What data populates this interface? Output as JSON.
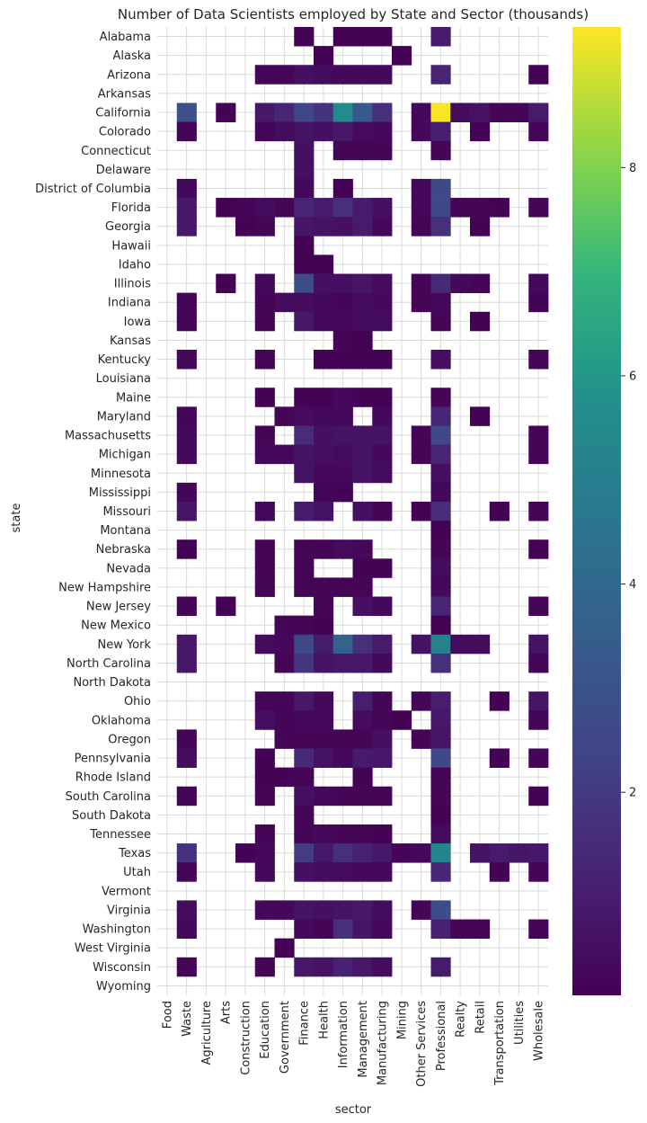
{
  "chart_data": {
    "type": "heatmap",
    "title": "Number of Data Scientists employed by State and Sector (thousands)",
    "xlabel": "sector",
    "ylabel": "state",
    "x_categories": [
      "Food",
      "Waste",
      "Agriculture",
      "Arts",
      "Construction",
      "Education",
      "Government",
      "Finance",
      "Health",
      "Information",
      "Management",
      "Manufacturing",
      "Mining",
      "Other Services",
      "Professional",
      "Realty",
      "Retail",
      "Transportation",
      "Utilities",
      "Wholesale"
    ],
    "y_categories": [
      "Alabama",
      "Alaska",
      "Arizona",
      "Arkansas",
      "California",
      "Colorado",
      "Connecticut",
      "Delaware",
      "District of Columbia",
      "Florida",
      "Georgia",
      "Hawaii",
      "Idaho",
      "Illinois",
      "Indiana",
      "Iowa",
      "Kansas",
      "Kentucky",
      "Louisiana",
      "Maine",
      "Maryland",
      "Massachusetts",
      "Michigan",
      "Minnesota",
      "Mississippi",
      "Missouri",
      "Montana",
      "Nebraska",
      "Nevada",
      "New Hampshire",
      "New Jersey",
      "New Mexico",
      "New York",
      "North Carolina",
      "North Dakota",
      "Ohio",
      "Oklahoma",
      "Oregon",
      "Pennsylvania",
      "Rhode Island",
      "South Carolina",
      "South Dakota",
      "Tennessee",
      "Texas",
      "Utah",
      "Vermont",
      "Virginia",
      "Washington",
      "West Virginia",
      "Wisconsin",
      "Wyoming"
    ],
    "values": [
      [
        null,
        null,
        null,
        null,
        null,
        null,
        null,
        0.1,
        null,
        0.1,
        0.1,
        0.1,
        null,
        null,
        0.9,
        null,
        null,
        null,
        null,
        null
      ],
      [
        null,
        null,
        null,
        null,
        null,
        null,
        null,
        null,
        0.1,
        null,
        null,
        null,
        0.1,
        null,
        null,
        null,
        null,
        null,
        null,
        null
      ],
      [
        null,
        null,
        null,
        null,
        null,
        0.2,
        0.2,
        0.5,
        0.4,
        0.3,
        0.3,
        0.3,
        null,
        null,
        1.2,
        null,
        null,
        null,
        null,
        0.1
      ],
      [
        null,
        null,
        null,
        null,
        null,
        null,
        null,
        null,
        null,
        null,
        null,
        null,
        null,
        null,
        null,
        null,
        null,
        null,
        null,
        null
      ],
      [
        null,
        2.9,
        null,
        0.1,
        null,
        0.8,
        1.3,
        2.5,
        1.8,
        5.6,
        3.3,
        1.6,
        null,
        0.3,
        9.3,
        0.4,
        0.6,
        0.2,
        0.2,
        0.9
      ],
      [
        null,
        0.2,
        null,
        null,
        null,
        0.2,
        0.4,
        0.6,
        0.5,
        0.8,
        0.4,
        0.3,
        null,
        0.3,
        1.0,
        null,
        0.1,
        null,
        null,
        0.2
      ],
      [
        null,
        null,
        null,
        null,
        null,
        null,
        null,
        0.5,
        null,
        0.2,
        0.2,
        0.2,
        null,
        null,
        0.2,
        null,
        null,
        null,
        null,
        null
      ],
      [
        null,
        null,
        null,
        null,
        null,
        null,
        null,
        0.5,
        null,
        null,
        null,
        null,
        null,
        null,
        null,
        null,
        null,
        null,
        null,
        null
      ],
      [
        null,
        0.3,
        null,
        null,
        null,
        null,
        null,
        0.3,
        null,
        0.1,
        null,
        null,
        null,
        0.3,
        2.6,
        null,
        null,
        null,
        null,
        null
      ],
      [
        null,
        0.8,
        null,
        0.1,
        0.2,
        0.4,
        0.2,
        1.2,
        0.9,
        1.6,
        0.9,
        0.5,
        null,
        0.3,
        2.6,
        0.2,
        0.2,
        0.1,
        null,
        0.2
      ],
      [
        null,
        0.8,
        null,
        null,
        0.1,
        0.2,
        null,
        0.7,
        0.6,
        0.5,
        0.9,
        0.3,
        null,
        0.2,
        1.6,
        null,
        0.1,
        null,
        null,
        null
      ],
      [
        null,
        null,
        null,
        null,
        null,
        null,
        null,
        0.1,
        null,
        null,
        null,
        null,
        null,
        null,
        null,
        null,
        null,
        null,
        null,
        null
      ],
      [
        null,
        null,
        null,
        null,
        null,
        null,
        null,
        0.1,
        0.1,
        null,
        null,
        null,
        null,
        null,
        null,
        null,
        null,
        null,
        null,
        null
      ],
      [
        null,
        null,
        null,
        0.1,
        null,
        0.3,
        null,
        2.7,
        0.5,
        0.5,
        0.7,
        0.4,
        null,
        0.2,
        1.4,
        0.3,
        0.2,
        null,
        null,
        0.3
      ],
      [
        null,
        0.2,
        null,
        null,
        null,
        0.2,
        0.4,
        0.4,
        0.3,
        0.2,
        0.4,
        0.3,
        null,
        0.2,
        0.3,
        null,
        null,
        null,
        null,
        0.1
      ],
      [
        null,
        0.2,
        null,
        null,
        null,
        0.2,
        null,
        0.8,
        0.3,
        0.3,
        0.4,
        0.4,
        null,
        null,
        0.2,
        null,
        0.1,
        null,
        null,
        null
      ],
      [
        null,
        null,
        null,
        null,
        null,
        null,
        null,
        null,
        null,
        0.2,
        0.1,
        null,
        null,
        null,
        null,
        null,
        null,
        null,
        null,
        null
      ],
      [
        null,
        0.3,
        null,
        null,
        null,
        0.2,
        null,
        null,
        0.1,
        0.1,
        0.1,
        0.1,
        null,
        null,
        0.5,
        null,
        null,
        null,
        null,
        0.2
      ],
      [
        null,
        null,
        null,
        null,
        null,
        null,
        null,
        null,
        null,
        null,
        null,
        null,
        null,
        null,
        null,
        null,
        null,
        null,
        null,
        null
      ],
      [
        null,
        null,
        null,
        null,
        null,
        0.1,
        null,
        0.1,
        0.1,
        0.3,
        0.1,
        0.1,
        null,
        null,
        0.2,
        null,
        null,
        null,
        null,
        null
      ],
      [
        null,
        0.2,
        null,
        null,
        null,
        null,
        0.2,
        0.4,
        0.3,
        0.3,
        null,
        0.3,
        null,
        null,
        1.2,
        null,
        0.1,
        null,
        null,
        null
      ],
      [
        null,
        0.3,
        null,
        null,
        null,
        0.2,
        null,
        1.5,
        0.5,
        0.6,
        0.6,
        0.6,
        null,
        0.2,
        2.6,
        null,
        null,
        null,
        null,
        0.2
      ],
      [
        null,
        0.3,
        null,
        null,
        null,
        0.3,
        0.3,
        0.6,
        0.5,
        0.4,
        0.6,
        0.3,
        null,
        0.2,
        1.2,
        null,
        null,
        null,
        null,
        0.2
      ],
      [
        null,
        null,
        null,
        null,
        null,
        null,
        null,
        0.6,
        0.3,
        0.3,
        0.6,
        0.4,
        null,
        null,
        0.5,
        null,
        null,
        null,
        null,
        null
      ],
      [
        null,
        0.2,
        null,
        null,
        null,
        null,
        null,
        null,
        0.2,
        0.1,
        null,
        null,
        null,
        null,
        0.3,
        null,
        null,
        null,
        null,
        null
      ],
      [
        null,
        0.7,
        null,
        null,
        null,
        0.3,
        null,
        0.9,
        0.6,
        null,
        0.5,
        0.2,
        null,
        0.1,
        1.5,
        null,
        null,
        0.1,
        null,
        0.2
      ],
      [
        null,
        null,
        null,
        null,
        null,
        null,
        null,
        null,
        null,
        null,
        null,
        null,
        null,
        null,
        0.1,
        null,
        null,
        null,
        null,
        null
      ],
      [
        null,
        0.1,
        null,
        null,
        null,
        0.2,
        null,
        0.2,
        0.2,
        0.4,
        0.3,
        null,
        null,
        null,
        0.2,
        null,
        null,
        null,
        null,
        0.1
      ],
      [
        null,
        null,
        null,
        null,
        null,
        0.2,
        null,
        0.2,
        null,
        null,
        0.1,
        0.1,
        null,
        null,
        0.4,
        null,
        null,
        null,
        null,
        null
      ],
      [
        null,
        null,
        null,
        null,
        null,
        0.2,
        null,
        0.2,
        0.2,
        0.2,
        0.2,
        null,
        null,
        null,
        0.3,
        null,
        null,
        null,
        null,
        null
      ],
      [
        null,
        0.2,
        null,
        0.1,
        null,
        null,
        null,
        null,
        0.2,
        null,
        0.5,
        0.3,
        null,
        null,
        1.2,
        null,
        null,
        null,
        null,
        0.2
      ],
      [
        null,
        null,
        null,
        null,
        null,
        null,
        0.2,
        0.2,
        0.1,
        null,
        null,
        null,
        null,
        null,
        0.1,
        null,
        null,
        null,
        null,
        null
      ],
      [
        null,
        0.8,
        null,
        null,
        null,
        0.4,
        0.3,
        2.6,
        0.9,
        3.7,
        1.6,
        0.9,
        null,
        0.6,
        5.2,
        0.4,
        0.4,
        null,
        null,
        0.6
      ],
      [
        null,
        0.8,
        null,
        null,
        null,
        null,
        0.2,
        1.9,
        0.6,
        0.8,
        0.8,
        0.3,
        null,
        null,
        1.6,
        null,
        null,
        null,
        null,
        0.2
      ],
      [
        null,
        null,
        null,
        null,
        null,
        null,
        null,
        null,
        null,
        null,
        null,
        null,
        null,
        null,
        null,
        null,
        null,
        null,
        null,
        null
      ],
      [
        null,
        null,
        null,
        null,
        null,
        0.2,
        0.2,
        0.8,
        0.3,
        null,
        1.0,
        0.2,
        null,
        0.2,
        1.0,
        null,
        null,
        0.1,
        null,
        0.7
      ],
      [
        null,
        null,
        null,
        null,
        null,
        0.5,
        0.2,
        0.3,
        0.3,
        null,
        0.4,
        0.2,
        0.1,
        null,
        0.8,
        null,
        null,
        null,
        null,
        0.2
      ],
      [
        null,
        0.2,
        null,
        null,
        null,
        null,
        0.2,
        0.2,
        0.2,
        0.2,
        0.2,
        0.5,
        null,
        0.2,
        0.7,
        null,
        null,
        null,
        null,
        null
      ],
      [
        null,
        0.4,
        null,
        null,
        null,
        0.1,
        null,
        1.4,
        0.6,
        0.3,
        0.9,
        0.8,
        null,
        null,
        2.6,
        null,
        null,
        0.1,
        null,
        0.2
      ],
      [
        null,
        null,
        null,
        null,
        null,
        0.1,
        0.1,
        0.2,
        null,
        null,
        0.1,
        null,
        null,
        null,
        0.2,
        null,
        null,
        null,
        null,
        null
      ],
      [
        null,
        0.2,
        null,
        null,
        null,
        0.2,
        null,
        0.5,
        0.3,
        0.2,
        0.2,
        0.2,
        null,
        null,
        0.2,
        null,
        null,
        null,
        null,
        0.1
      ],
      [
        null,
        null,
        null,
        null,
        null,
        null,
        null,
        0.2,
        null,
        null,
        null,
        null,
        null,
        null,
        0.1,
        null,
        null,
        null,
        null,
        null
      ],
      [
        null,
        null,
        null,
        null,
        null,
        0.2,
        null,
        0.2,
        0.3,
        0.2,
        0.2,
        0.1,
        null,
        null,
        0.4,
        null,
        null,
        null,
        null,
        null
      ],
      [
        null,
        1.7,
        null,
        null,
        0.1,
        0.3,
        null,
        2.1,
        0.8,
        1.6,
        1.1,
        0.8,
        0.2,
        0.3,
        5.3,
        null,
        0.6,
        0.9,
        0.7,
        0.8
      ],
      [
        null,
        0.2,
        null,
        null,
        null,
        0.3,
        null,
        0.5,
        0.4,
        0.4,
        0.3,
        0.3,
        null,
        null,
        1.3,
        null,
        null,
        0.1,
        null,
        0.2
      ],
      [
        null,
        null,
        null,
        null,
        null,
        null,
        null,
        null,
        null,
        null,
        null,
        null,
        null,
        null,
        null,
        null,
        null,
        null,
        null,
        null
      ],
      [
        null,
        0.4,
        null,
        null,
        null,
        0.3,
        0.3,
        0.6,
        0.5,
        0.6,
        0.8,
        0.4,
        null,
        0.2,
        2.7,
        null,
        null,
        null,
        null,
        null
      ],
      [
        null,
        0.3,
        null,
        null,
        null,
        null,
        null,
        0.3,
        0.2,
        1.6,
        0.7,
        0.3,
        null,
        null,
        1.1,
        0.2,
        0.2,
        null,
        null,
        0.2
      ],
      [
        null,
        null,
        null,
        null,
        null,
        null,
        0.1,
        null,
        null,
        null,
        null,
        null,
        null,
        null,
        null,
        null,
        null,
        null,
        null,
        null
      ],
      [
        null,
        0.2,
        null,
        null,
        null,
        0.2,
        null,
        0.8,
        0.6,
        1.1,
        0.8,
        0.4,
        null,
        null,
        0.9,
        null,
        null,
        null,
        null,
        null
      ],
      [
        null,
        null,
        null,
        null,
        null,
        null,
        null,
        null,
        null,
        null,
        null,
        null,
        null,
        null,
        null,
        null,
        null,
        null,
        null,
        null
      ]
    ],
    "colorscale": "viridis",
    "colorbar_range": [
      0.05,
      9.35
    ],
    "colorbar_ticks": [
      2,
      4,
      6,
      8
    ],
    "colors": {
      "background": "#ffffff",
      "grid": "#d9d9d9",
      "text": "#262626"
    },
    "grid": true
  }
}
